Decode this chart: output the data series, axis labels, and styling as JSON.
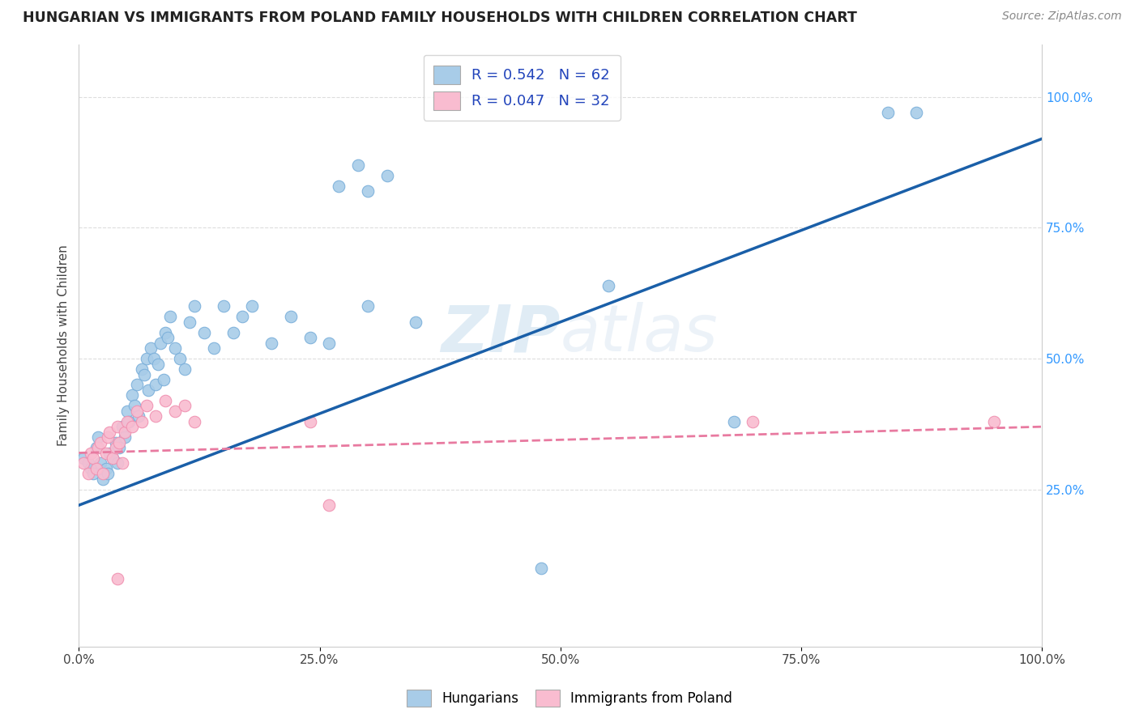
{
  "title": "HUNGARIAN VS IMMIGRANTS FROM POLAND FAMILY HOUSEHOLDS WITH CHILDREN CORRELATION CHART",
  "source": "Source: ZipAtlas.com",
  "ylabel": "Family Households with Children",
  "xlim": [
    0.0,
    1.0
  ],
  "ylim": [
    -0.05,
    1.1
  ],
  "xtick_labels": [
    "0.0%",
    "25.0%",
    "50.0%",
    "75.0%",
    "100.0%"
  ],
  "xtick_vals": [
    0.0,
    0.25,
    0.5,
    0.75,
    1.0
  ],
  "ytick_right_labels": [
    "25.0%",
    "50.0%",
    "75.0%",
    "100.0%"
  ],
  "ytick_right_vals": [
    0.25,
    0.5,
    0.75,
    1.0
  ],
  "watermark": "ZIPatlas",
  "legend_r1": "R = 0.542",
  "legend_n1": "N = 62",
  "legend_r2": "R = 0.047",
  "legend_n2": "N = 32",
  "blue_color": "#a8cce8",
  "blue_edge_color": "#7aafda",
  "pink_color": "#f9bcd0",
  "pink_edge_color": "#f090b0",
  "blue_line_color": "#1a5fa8",
  "pink_line_color": "#e87aa0",
  "background_color": "#ffffff",
  "grid_color": "#dddddd",
  "right_axis_color": "#3399ff",
  "blue_scatter": [
    [
      0.005,
      0.31
    ],
    [
      0.01,
      0.3
    ],
    [
      0.012,
      0.29
    ],
    [
      0.015,
      0.28
    ],
    [
      0.018,
      0.33
    ],
    [
      0.02,
      0.35
    ],
    [
      0.022,
      0.3
    ],
    [
      0.025,
      0.27
    ],
    [
      0.028,
      0.29
    ],
    [
      0.03,
      0.28
    ],
    [
      0.032,
      0.32
    ],
    [
      0.035,
      0.31
    ],
    [
      0.038,
      0.34
    ],
    [
      0.04,
      0.3
    ],
    [
      0.042,
      0.33
    ],
    [
      0.045,
      0.37
    ],
    [
      0.048,
      0.35
    ],
    [
      0.05,
      0.4
    ],
    [
      0.052,
      0.38
    ],
    [
      0.055,
      0.43
    ],
    [
      0.058,
      0.41
    ],
    [
      0.06,
      0.45
    ],
    [
      0.062,
      0.39
    ],
    [
      0.065,
      0.48
    ],
    [
      0.068,
      0.47
    ],
    [
      0.07,
      0.5
    ],
    [
      0.072,
      0.44
    ],
    [
      0.075,
      0.52
    ],
    [
      0.078,
      0.5
    ],
    [
      0.08,
      0.45
    ],
    [
      0.082,
      0.49
    ],
    [
      0.085,
      0.53
    ],
    [
      0.088,
      0.46
    ],
    [
      0.09,
      0.55
    ],
    [
      0.092,
      0.54
    ],
    [
      0.095,
      0.58
    ],
    [
      0.1,
      0.52
    ],
    [
      0.105,
      0.5
    ],
    [
      0.11,
      0.48
    ],
    [
      0.115,
      0.57
    ],
    [
      0.12,
      0.6
    ],
    [
      0.13,
      0.55
    ],
    [
      0.14,
      0.52
    ],
    [
      0.15,
      0.6
    ],
    [
      0.16,
      0.55
    ],
    [
      0.17,
      0.58
    ],
    [
      0.18,
      0.6
    ],
    [
      0.2,
      0.53
    ],
    [
      0.22,
      0.58
    ],
    [
      0.24,
      0.54
    ],
    [
      0.26,
      0.53
    ],
    [
      0.3,
      0.6
    ],
    [
      0.35,
      0.57
    ],
    [
      0.27,
      0.83
    ],
    [
      0.29,
      0.87
    ],
    [
      0.3,
      0.82
    ],
    [
      0.32,
      0.85
    ],
    [
      0.48,
      0.1
    ],
    [
      0.55,
      0.64
    ],
    [
      0.68,
      0.38
    ],
    [
      0.84,
      0.97
    ],
    [
      0.87,
      0.97
    ]
  ],
  "pink_scatter": [
    [
      0.005,
      0.3
    ],
    [
      0.01,
      0.28
    ],
    [
      0.012,
      0.32
    ],
    [
      0.015,
      0.31
    ],
    [
      0.018,
      0.29
    ],
    [
      0.02,
      0.33
    ],
    [
      0.022,
      0.34
    ],
    [
      0.025,
      0.28
    ],
    [
      0.028,
      0.32
    ],
    [
      0.03,
      0.35
    ],
    [
      0.032,
      0.36
    ],
    [
      0.035,
      0.31
    ],
    [
      0.038,
      0.33
    ],
    [
      0.04,
      0.37
    ],
    [
      0.042,
      0.34
    ],
    [
      0.045,
      0.3
    ],
    [
      0.048,
      0.36
    ],
    [
      0.05,
      0.38
    ],
    [
      0.055,
      0.37
    ],
    [
      0.06,
      0.4
    ],
    [
      0.065,
      0.38
    ],
    [
      0.07,
      0.41
    ],
    [
      0.08,
      0.39
    ],
    [
      0.09,
      0.42
    ],
    [
      0.1,
      0.4
    ],
    [
      0.11,
      0.41
    ],
    [
      0.12,
      0.38
    ],
    [
      0.04,
      0.08
    ],
    [
      0.24,
      0.38
    ],
    [
      0.26,
      0.22
    ],
    [
      0.7,
      0.38
    ],
    [
      0.95,
      0.38
    ]
  ]
}
